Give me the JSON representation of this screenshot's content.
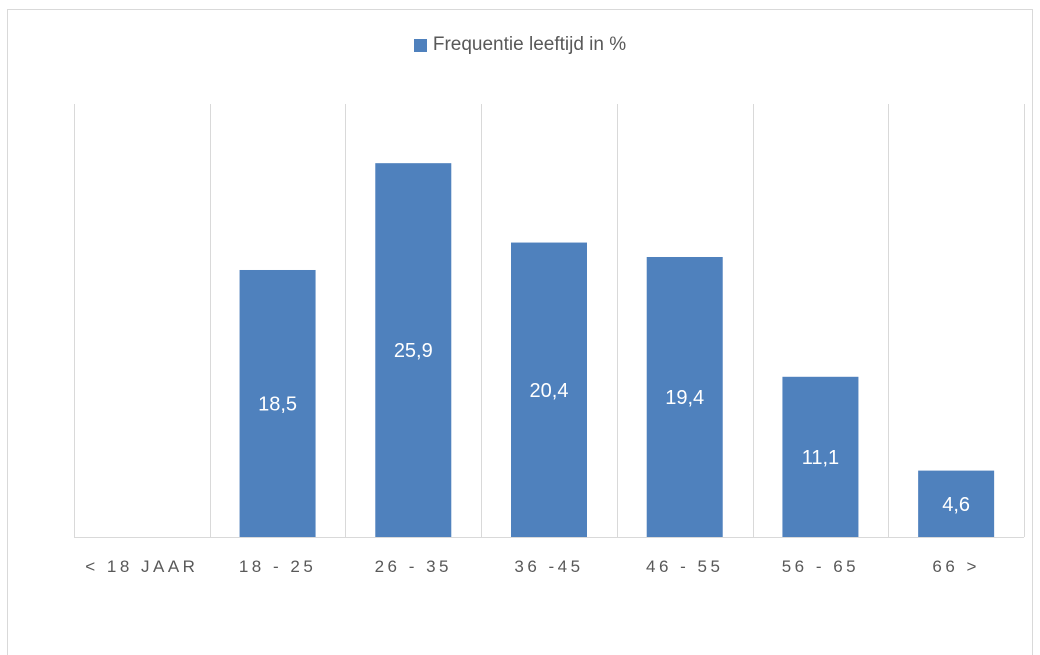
{
  "chart_data": {
    "type": "bar",
    "categories": [
      "< 18 JAAR",
      "18 - 25",
      "26 - 35",
      "36 -45",
      "46 - 55",
      "56 - 65",
      "66 >"
    ],
    "series": [
      {
        "name": "Frequentie leeftijd in %",
        "values": [
          0,
          18.5,
          25.9,
          20.4,
          19.4,
          11.1,
          4.6
        ]
      }
    ],
    "data_labels": [
      "",
      "18,5",
      "25,9",
      "20,4",
      "19,4",
      "11,1",
      "4,6"
    ],
    "ylim": [
      0,
      30
    ],
    "grid": "vertical",
    "legend_position": "top",
    "bar_color": "#4f81bd",
    "label_color": "#ffffff"
  }
}
